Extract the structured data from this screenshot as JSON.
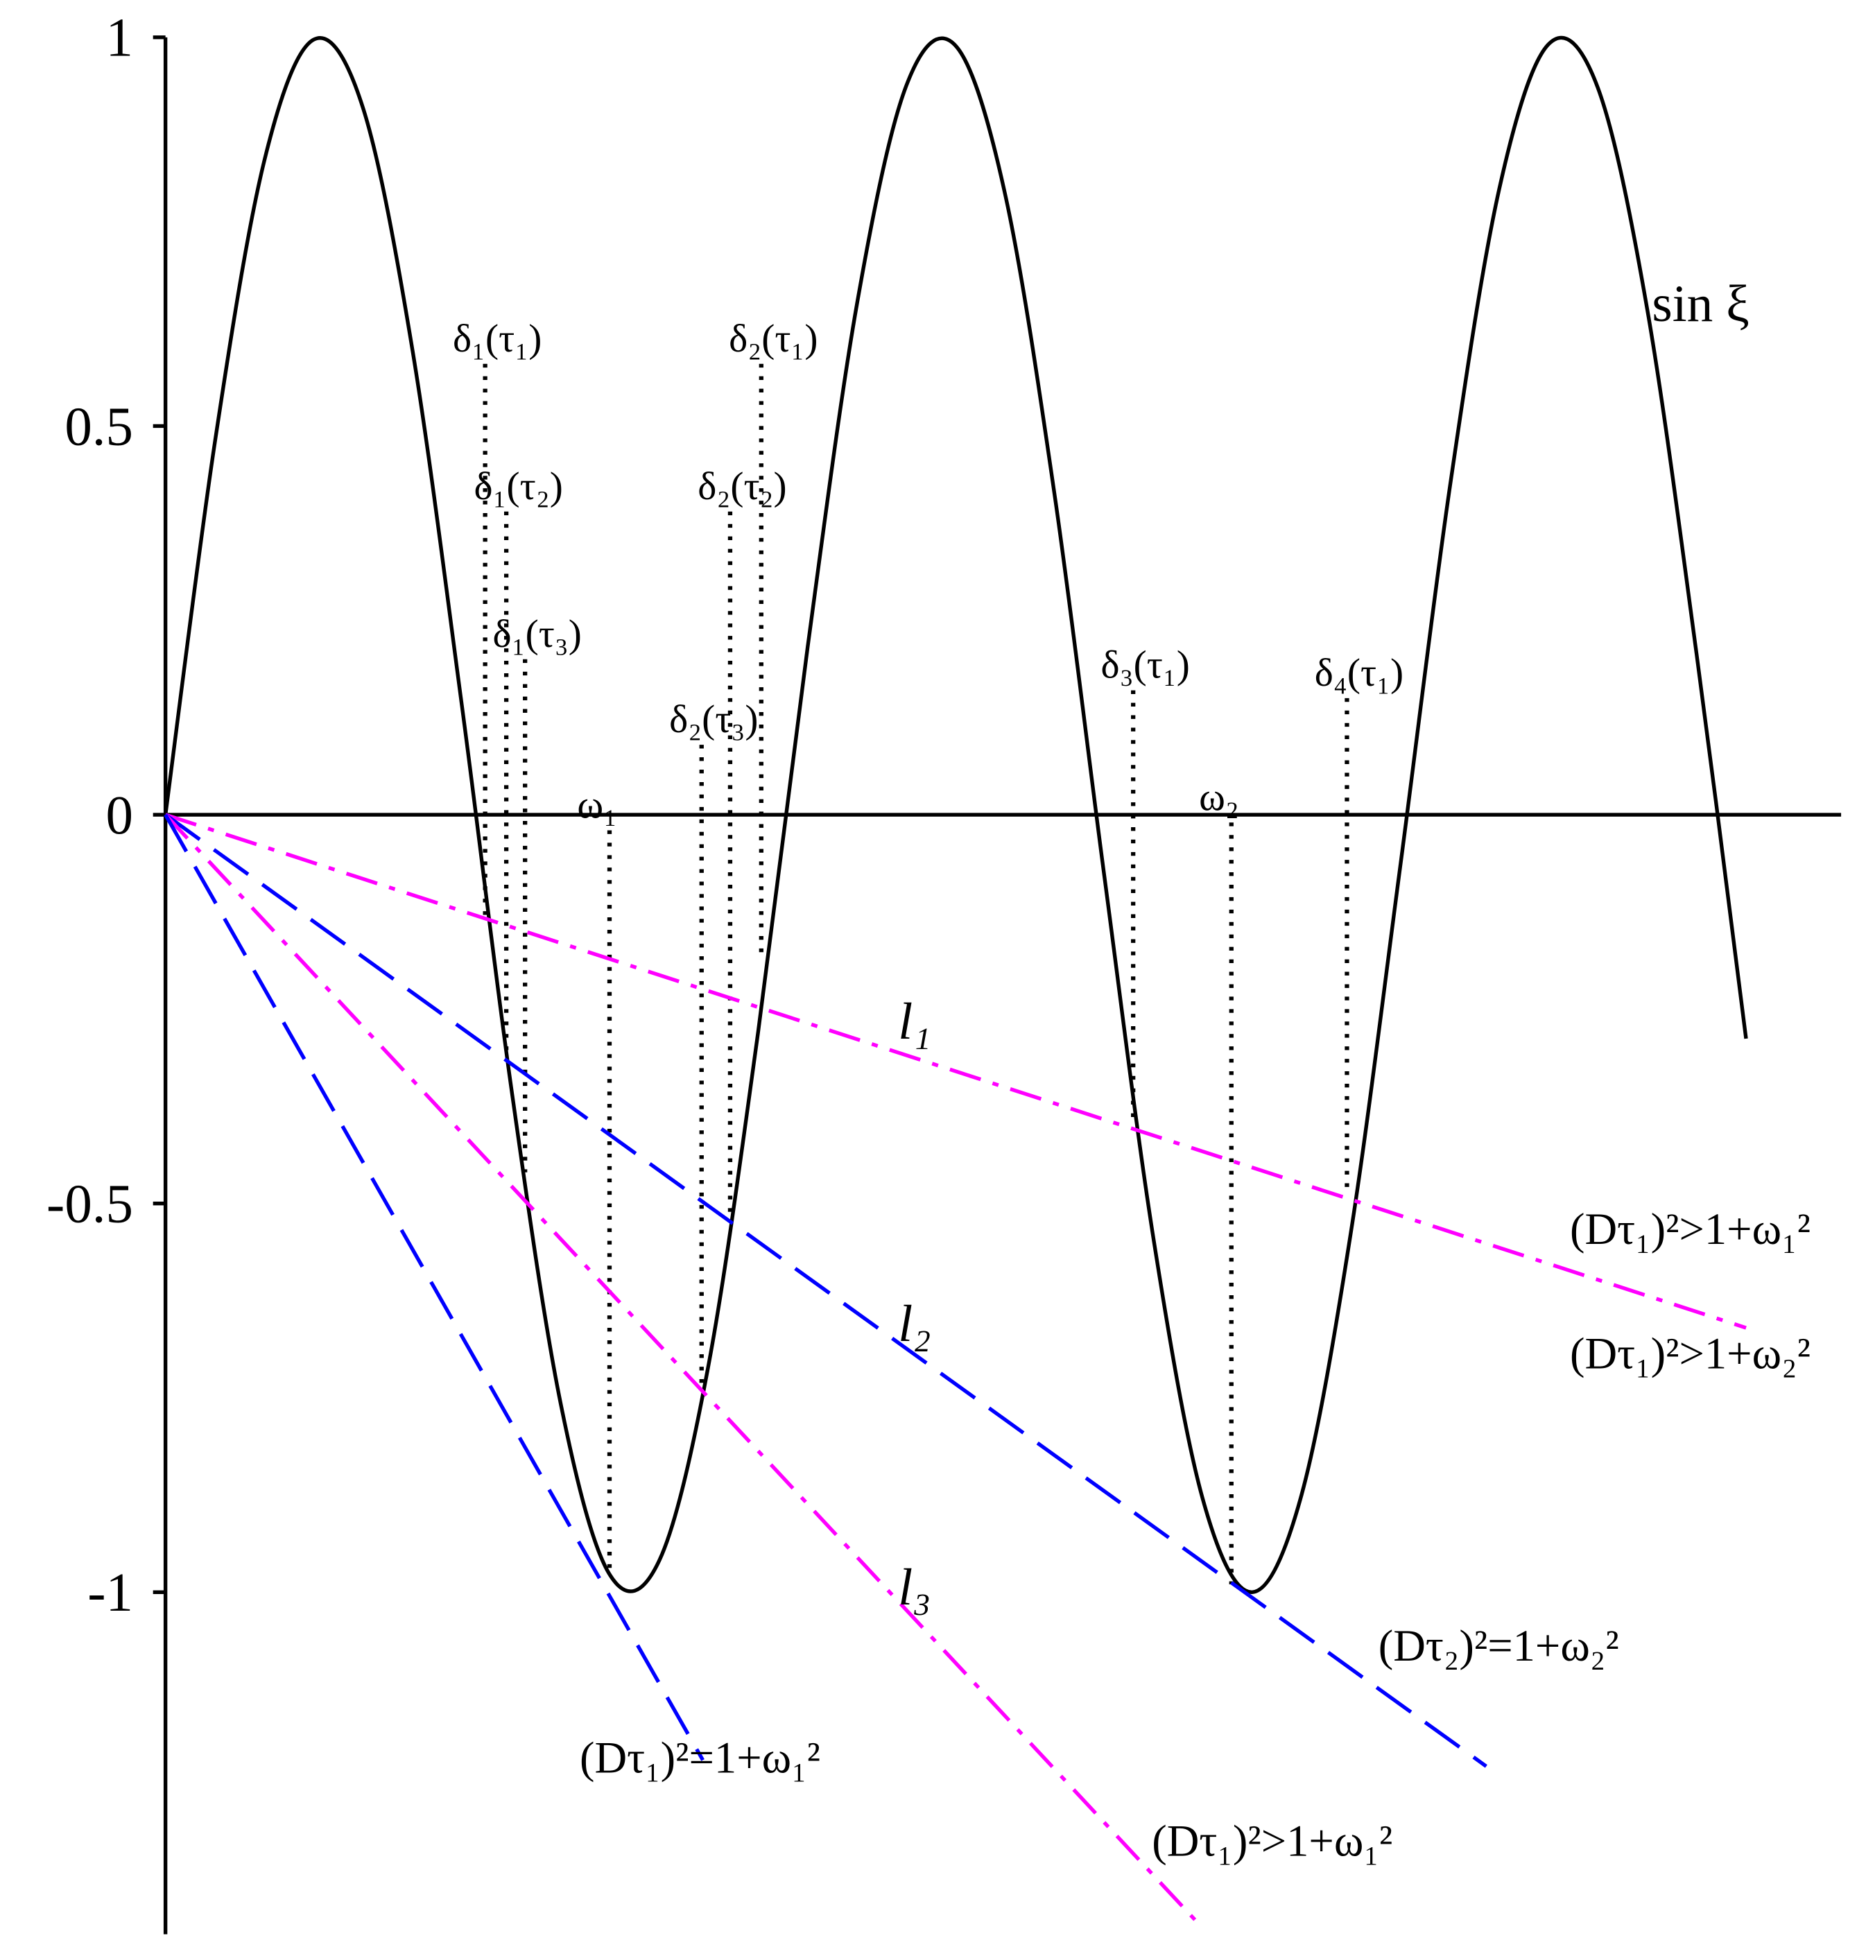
{
  "chart_data": {
    "type": "line",
    "ylim": [
      -1.44,
      1
    ],
    "yticks": [
      -1,
      -0.5,
      0,
      0.5,
      1
    ],
    "xlim": [
      0,
      17
    ],
    "series": [
      {
        "name": "sin ξ",
        "color": "#000000",
        "dash": "solid",
        "x": [
          0,
          0.5,
          1,
          1.5,
          2,
          2.5,
          3,
          3.5,
          4,
          4.5,
          5,
          5.5,
          6,
          6.5,
          7,
          7.5,
          8,
          8.5,
          9,
          9.5,
          10,
          10.5,
          11,
          11.5,
          12,
          12.5,
          13,
          13.5,
          14,
          14.5,
          15,
          15.5,
          16
        ],
        "values": [
          0,
          0.479,
          0.841,
          0.997,
          0.909,
          0.598,
          0.141,
          -0.351,
          -0.757,
          -0.978,
          -0.959,
          -0.706,
          -0.279,
          0.215,
          0.657,
          0.938,
          0.989,
          0.798,
          0.412,
          -0.075,
          -0.544,
          -0.88,
          -1,
          -0.875,
          -0.537,
          -0.066,
          0.42,
          0.804,
          0.991,
          0.935,
          0.65,
          0.206,
          -0.288
        ]
      },
      {
        "name": "l₁",
        "color": "#ff00ff",
        "dash": "dashdot",
        "x": [
          0,
          16
        ],
        "values": [
          0,
          -0.66
        ]
      },
      {
        "name": "l₂",
        "color": "#0000ff",
        "dash": "dash",
        "x": [
          0,
          13.37
        ],
        "values": [
          0,
          -1.224
        ]
      },
      {
        "name": "l₃",
        "color": "#ff00ff",
        "dash": "dashdot",
        "x": [
          0,
          10.44
        ],
        "values": [
          0,
          -1.424
        ]
      },
      {
        "color": "#0000ff",
        "dash": "dash",
        "x": [
          0,
          5.44
        ],
        "values": [
          0,
          -1.216
        ]
      }
    ],
    "markers": [
      {
        "label": "δ₁(τ₁)",
        "x": 3.236,
        "y": [
          0.58,
          -0.14
        ]
      },
      {
        "label": "δ₁(τ₂)",
        "x": 3.45,
        "y": [
          0.39,
          -0.31
        ]
      },
      {
        "label": "δ₁(τ₃)",
        "x": 3.64,
        "y": [
          0.2,
          -0.46
        ]
      },
      {
        "label": "ω₁",
        "x": 4.495,
        "y": [
          -0.02,
          -0.98
        ]
      },
      {
        "label": "δ₂(τ₃)",
        "x": 5.427,
        "y": [
          0.09,
          -0.74
        ]
      },
      {
        "label": "δ₂(τ₂)",
        "x": 5.716,
        "y": [
          0.39,
          -0.52
        ]
      },
      {
        "label": "δ₂(τ₁)",
        "x": 6.031,
        "y": [
          0.58,
          -0.18
        ]
      },
      {
        "label": "δ₃(τ₁)",
        "x": 9.796,
        "y": [
          0.16,
          -0.4
        ]
      },
      {
        "label": "ω₂",
        "x": 10.79,
        "y": [
          -0.01,
          -0.99
        ]
      },
      {
        "label": "δ₄(τ₁)",
        "x": 11.96,
        "y": [
          0.15,
          -0.49
        ]
      }
    ],
    "annotations": [
      "(Dτ₁)²>1+ω₁²",
      "(Dτ₁)²>1+ω₂²",
      "(Dτ₂)²=1+ω₂²",
      "(Dτ₁)²=1+ω₁²",
      "(Dτ₁)²>1+ω₁²"
    ]
  }
}
